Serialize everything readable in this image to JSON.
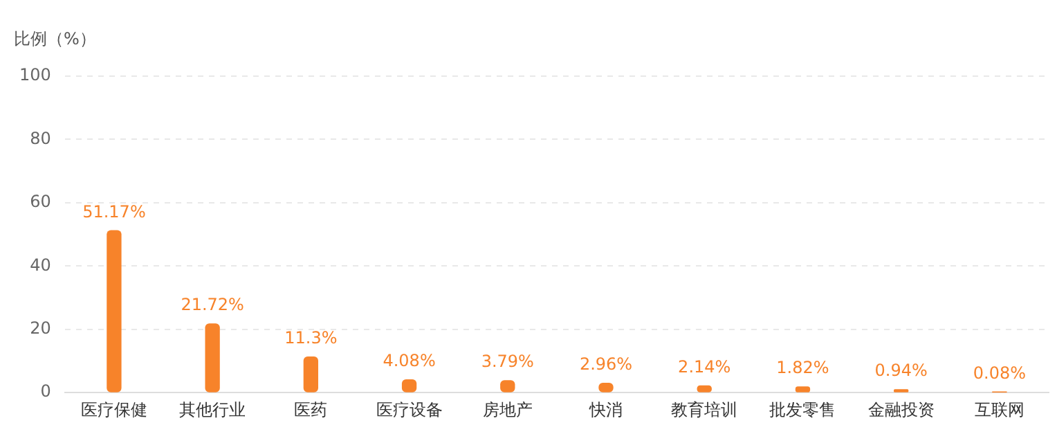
{
  "chart_data": {
    "type": "bar",
    "ylabel": "比例（%）",
    "categories": [
      "医疗保健",
      "其他行业",
      "医药",
      "医疗设备",
      "房地产",
      "快消",
      "教育培训",
      "批发零售",
      "金融投资",
      "互联网"
    ],
    "values": [
      51.17,
      21.72,
      11.3,
      4.08,
      3.79,
      2.96,
      2.14,
      1.82,
      0.94,
      0.08
    ],
    "value_labels": [
      "51.17%",
      "21.72%",
      "11.3%",
      "4.08%",
      "3.79%",
      "2.96%",
      "2.14%",
      "1.82%",
      "0.94%",
      "0.08%"
    ],
    "color": "#f7832a",
    "ylim": [
      0,
      100
    ],
    "yticks": [
      0,
      20,
      40,
      60,
      80,
      100
    ],
    "grid": "y"
  }
}
